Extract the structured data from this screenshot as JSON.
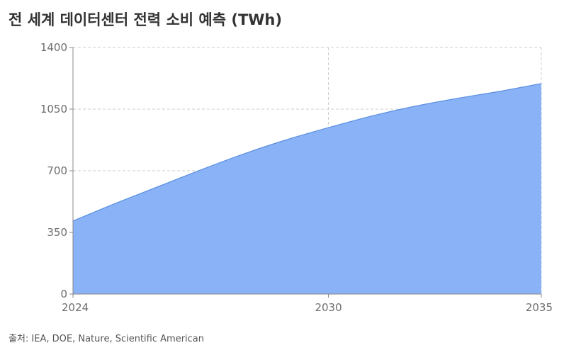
{
  "title": "전 세계 데이터센터 전력 소비 예측 (TWh)",
  "source": "출처: IEA, DOE, Nature, Scientific American",
  "chart_data": {
    "type": "area",
    "title": "전 세계 데이터센터 전력 소비 예측 (TWh)",
    "xlabel": "",
    "ylabel": "",
    "x": [
      2024,
      2025,
      2026,
      2027,
      2028,
      2029,
      2030,
      2031,
      2032,
      2033,
      2034,
      2035
    ],
    "series": [
      {
        "values": [
          415,
          515,
          610,
          705,
          795,
          875,
          945,
          1010,
          1065,
          1110,
          1150,
          1195
        ]
      }
    ],
    "xlim": [
      2024,
      2035
    ],
    "ylim": [
      0,
      1400
    ],
    "x_ticks": [
      "2024",
      "2030",
      "2035"
    ],
    "y_ticks": [
      "0",
      "350",
      "700",
      "1050",
      "1400"
    ],
    "grid": true,
    "fill_color": "#89b2f7",
    "line_color": "#5b8fe0",
    "grid_color": "#cccccc",
    "axis_color": "#888888"
  }
}
